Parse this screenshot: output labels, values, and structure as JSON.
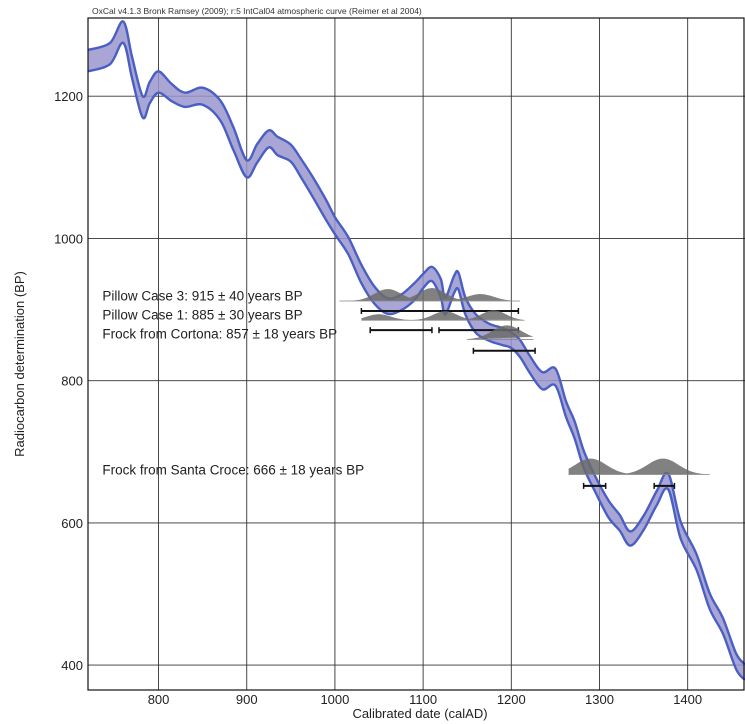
{
  "chart_data": {
    "type": "line",
    "header": "OxCal v4.1.3 Bronk Ramsey (2009); r:5 IntCal04 atmospheric curve (Reimer et al 2004)",
    "xlabel": "Calibrated date (calAD)",
    "ylabel": "Radiocarbon determination (BP)",
    "xlim": [
      720,
      1465
    ],
    "ylim": [
      365,
      1310
    ],
    "x_ticks": [
      800,
      900,
      1000,
      1100,
      1200,
      1300,
      1400
    ],
    "y_ticks": [
      400,
      600,
      800,
      1000,
      1200
    ],
    "grid": true,
    "colors": {
      "curve_stroke": "#4a5fc4",
      "curve_fill": "#9a95cc",
      "distribution": "#6b6b6b",
      "range": "#111111"
    },
    "calibration_curve": {
      "x": [
        720,
        745,
        760,
        770,
        782,
        790,
        800,
        815,
        830,
        850,
        870,
        885,
        900,
        912,
        925,
        935,
        950,
        962,
        975,
        990,
        1000,
        1015,
        1030,
        1045,
        1060,
        1075,
        1090,
        1100,
        1110,
        1120,
        1125,
        1135,
        1140,
        1148,
        1160,
        1175,
        1190,
        1200,
        1210,
        1220,
        1235,
        1250,
        1262,
        1272,
        1282,
        1295,
        1310,
        1323,
        1335,
        1350,
        1365,
        1378,
        1392,
        1410,
        1425,
        1440,
        1455,
        1465
      ],
      "y": [
        1250,
        1260,
        1290,
        1240,
        1185,
        1205,
        1220,
        1205,
        1195,
        1200,
        1180,
        1140,
        1098,
        1120,
        1140,
        1130,
        1120,
        1098,
        1072,
        1040,
        1018,
        990,
        950,
        920,
        905,
        910,
        925,
        940,
        950,
        930,
        905,
        935,
        940,
        905,
        880,
        868,
        862,
        857,
        845,
        825,
        800,
        805,
        760,
        730,
        690,
        655,
        620,
        600,
        578,
        600,
        635,
        658,
        590,
        545,
        490,
        455,
        405,
        390
      ],
      "half_width": [
        15,
        15,
        15,
        15,
        15,
        15,
        15,
        12,
        10,
        12,
        14,
        16,
        12,
        13,
        12,
        13,
        12,
        13,
        14,
        14,
        12,
        12,
        13,
        12,
        11,
        11,
        12,
        10,
        10,
        13,
        12,
        12,
        12,
        12,
        13,
        12,
        12,
        11,
        12,
        12,
        12,
        12,
        11,
        12,
        12,
        11,
        12,
        11,
        10,
        10,
        10,
        11,
        12,
        11,
        11,
        11,
        11,
        11
      ]
    },
    "samples": [
      {
        "label": "Pillow Case 3: 915 ± 40 years BP",
        "label_x": 725,
        "label_y": 920,
        "baseline_y": 912,
        "dist_x": [
          1005,
          1210
        ],
        "dist_peaks": [
          [
            1060,
            12
          ],
          [
            1110,
            13
          ],
          [
            1165,
            7
          ]
        ],
        "ranges": [
          {
            "y": 898,
            "from": 1030,
            "to": 1208
          }
        ]
      },
      {
        "label": "Pillow Case 1: 885 ± 30 years BP",
        "label_x": 725,
        "label_y": 893,
        "baseline_y": 885,
        "dist_x": [
          1030,
          1215
        ],
        "dist_peaks": [
          [
            1050,
            6
          ],
          [
            1125,
            9
          ],
          [
            1180,
            10
          ]
        ],
        "ranges": [
          {
            "y": 871,
            "from": 1040,
            "to": 1110
          },
          {
            "y": 871,
            "from": 1118,
            "to": 1208
          }
        ]
      },
      {
        "label": "Frock from Cortona: 857 ± 18 years BP",
        "label_x": 725,
        "label_y": 866,
        "baseline_y": 858,
        "dist_x": [
          1150,
          1225
        ],
        "dist_peaks": [
          [
            1195,
            14
          ]
        ],
        "ranges": [
          {
            "y": 842,
            "from": 1157,
            "to": 1227
          }
        ]
      },
      {
        "label": "Frock from Santa Croce: 666 ± 18 years BP",
        "label_x": 725,
        "label_y": 675,
        "baseline_y": 668,
        "dist_x": [
          1265,
          1425
        ],
        "dist_peaks": [
          [
            1290,
            16
          ],
          [
            1372,
            16
          ]
        ],
        "ranges": [
          {
            "y": 652,
            "from": 1282,
            "to": 1307
          },
          {
            "y": 652,
            "from": 1362,
            "to": 1385
          }
        ]
      }
    ]
  }
}
